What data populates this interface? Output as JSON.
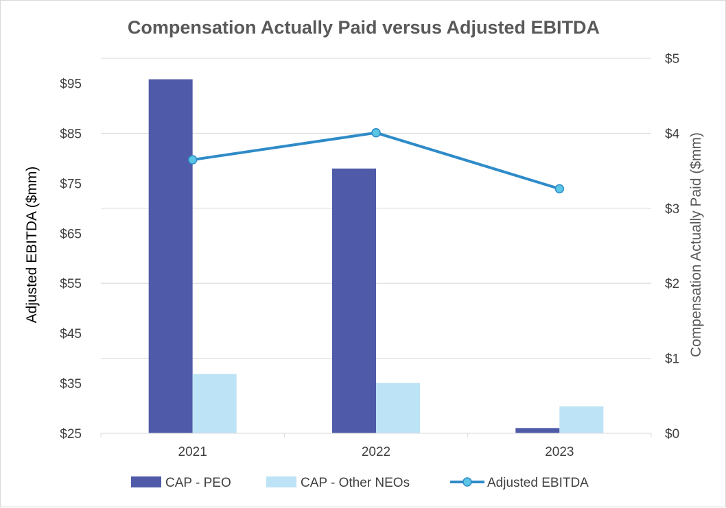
{
  "chart_data": {
    "type": "bar",
    "title": "Compensation Actually Paid versus Adjusted EBITDA",
    "categories": [
      "2021",
      "2022",
      "2023"
    ],
    "y_left": {
      "label": "Adjusted EBITDA ($mm)",
      "range": [
        25,
        100
      ],
      "ticks": [
        "$25",
        "$35",
        "$45",
        "$55",
        "$65",
        "$75",
        "$85",
        "$95"
      ],
      "tick_values": [
        25,
        35,
        45,
        55,
        65,
        75,
        85,
        95
      ]
    },
    "y_right": {
      "label": "Compensation Actually Paid ($mm)",
      "range": [
        0,
        5
      ],
      "ticks": [
        "$0",
        "$1",
        "$2",
        "$3",
        "$4",
        "$5"
      ],
      "tick_values": [
        0,
        1,
        2,
        3,
        4,
        5
      ]
    },
    "series": [
      {
        "name": "CAP - PEO",
        "type": "bar",
        "axis": "right",
        "color": "#4F5AA8",
        "values": [
          4.72,
          3.53,
          0.07
        ]
      },
      {
        "name": "CAP - Other NEOs",
        "type": "bar",
        "axis": "right",
        "color": "#BDE3F6",
        "values": [
          0.79,
          0.67,
          0.36
        ]
      },
      {
        "name": "Adjusted EBITDA",
        "type": "line",
        "axis": "left",
        "color": "#2E8BC8",
        "marker_color": "#5BC5E3",
        "values": [
          79.7,
          85.1,
          73.9
        ]
      }
    ],
    "legend_position": "bottom",
    "grid": true
  }
}
